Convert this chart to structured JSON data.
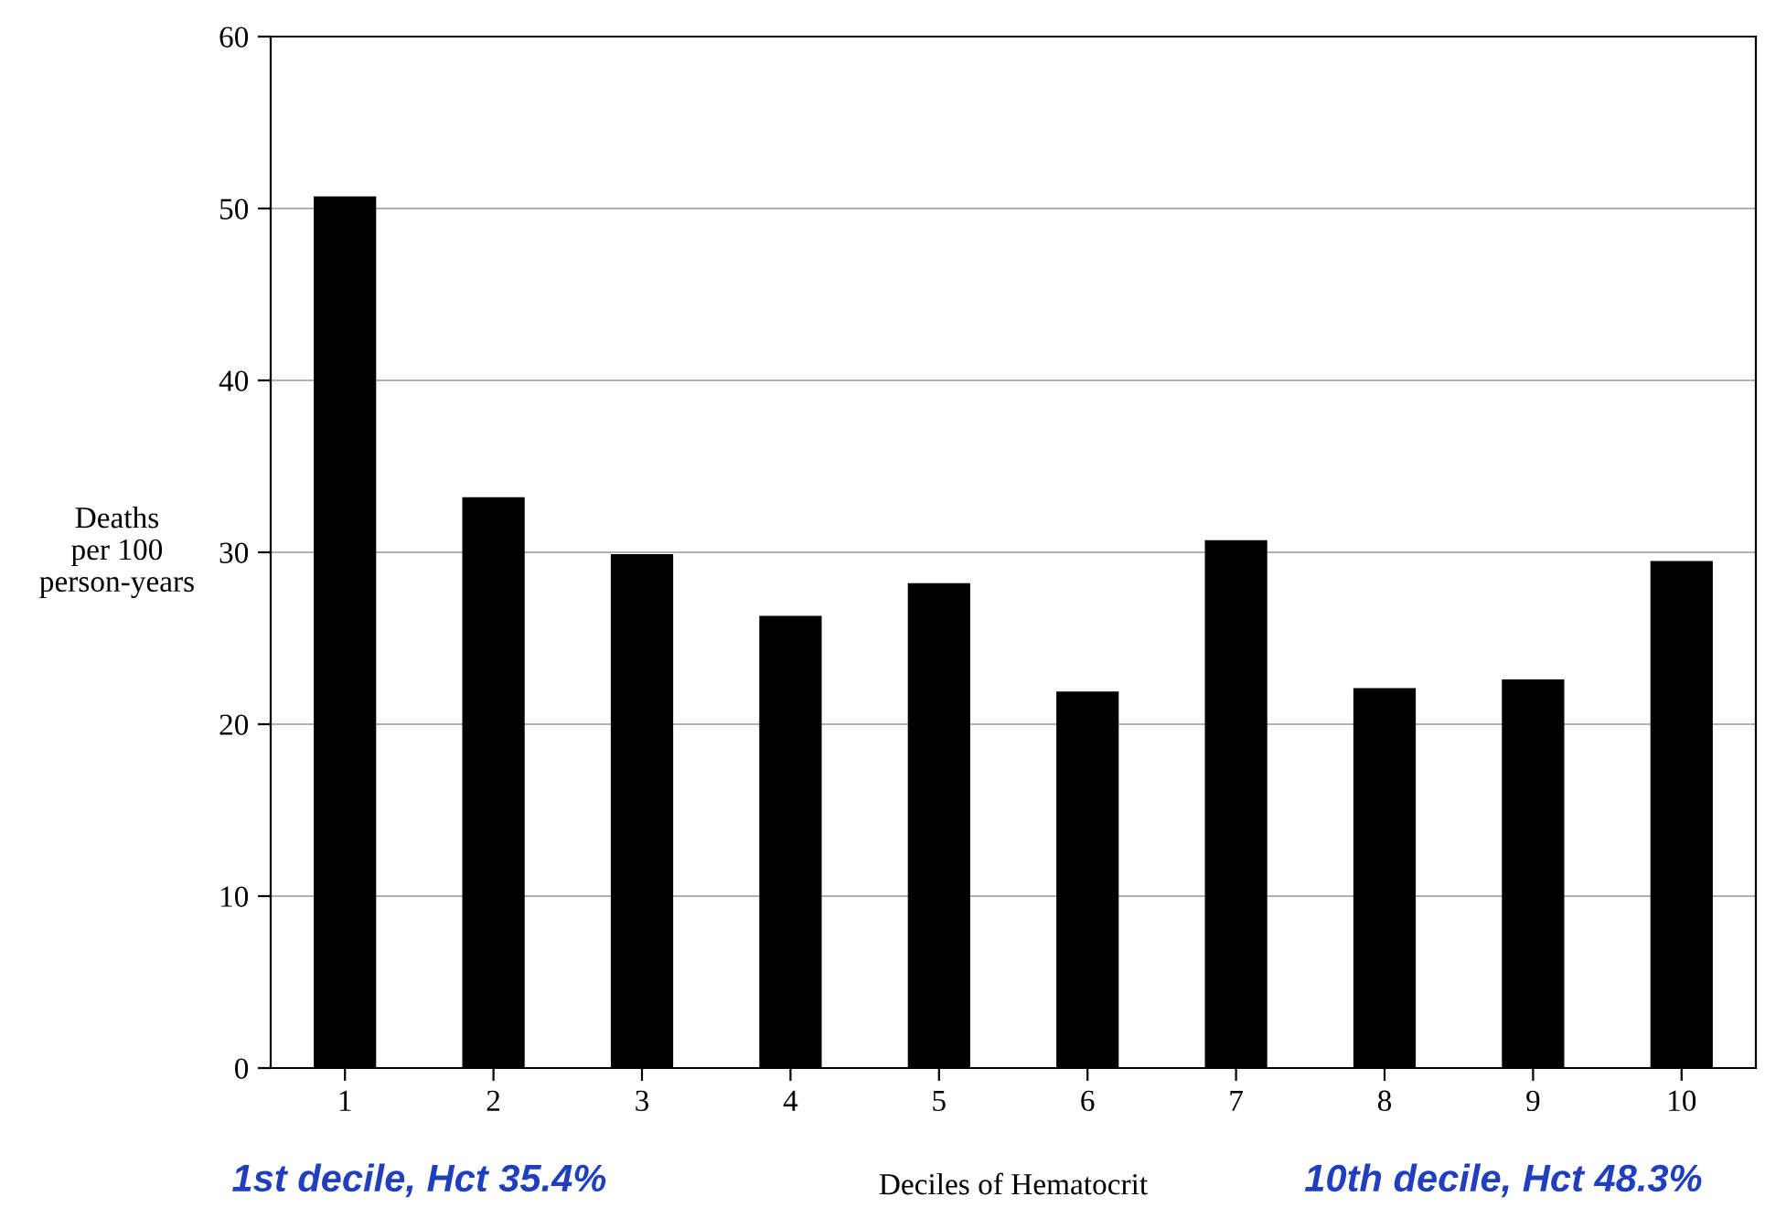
{
  "chart_data": {
    "type": "bar",
    "xlabel": "Deciles of Hematocrit",
    "ylabel": "Deaths\nper 100\nperson-years",
    "categories": [
      "1",
      "2",
      "3",
      "4",
      "5",
      "6",
      "7",
      "8",
      "9",
      "10"
    ],
    "values": [
      50.7,
      33.2,
      29.9,
      26.3,
      28.2,
      21.9,
      30.7,
      22.1,
      22.6,
      29.5
    ],
    "color": "#000000",
    "ylim": [
      0,
      60
    ],
    "yticks": [
      0,
      10,
      20,
      30,
      40,
      50,
      60
    ],
    "grid": "y",
    "annotations": [
      "1st decile, Hct 35.4%",
      "10th decile, Hct 48.3%"
    ]
  }
}
